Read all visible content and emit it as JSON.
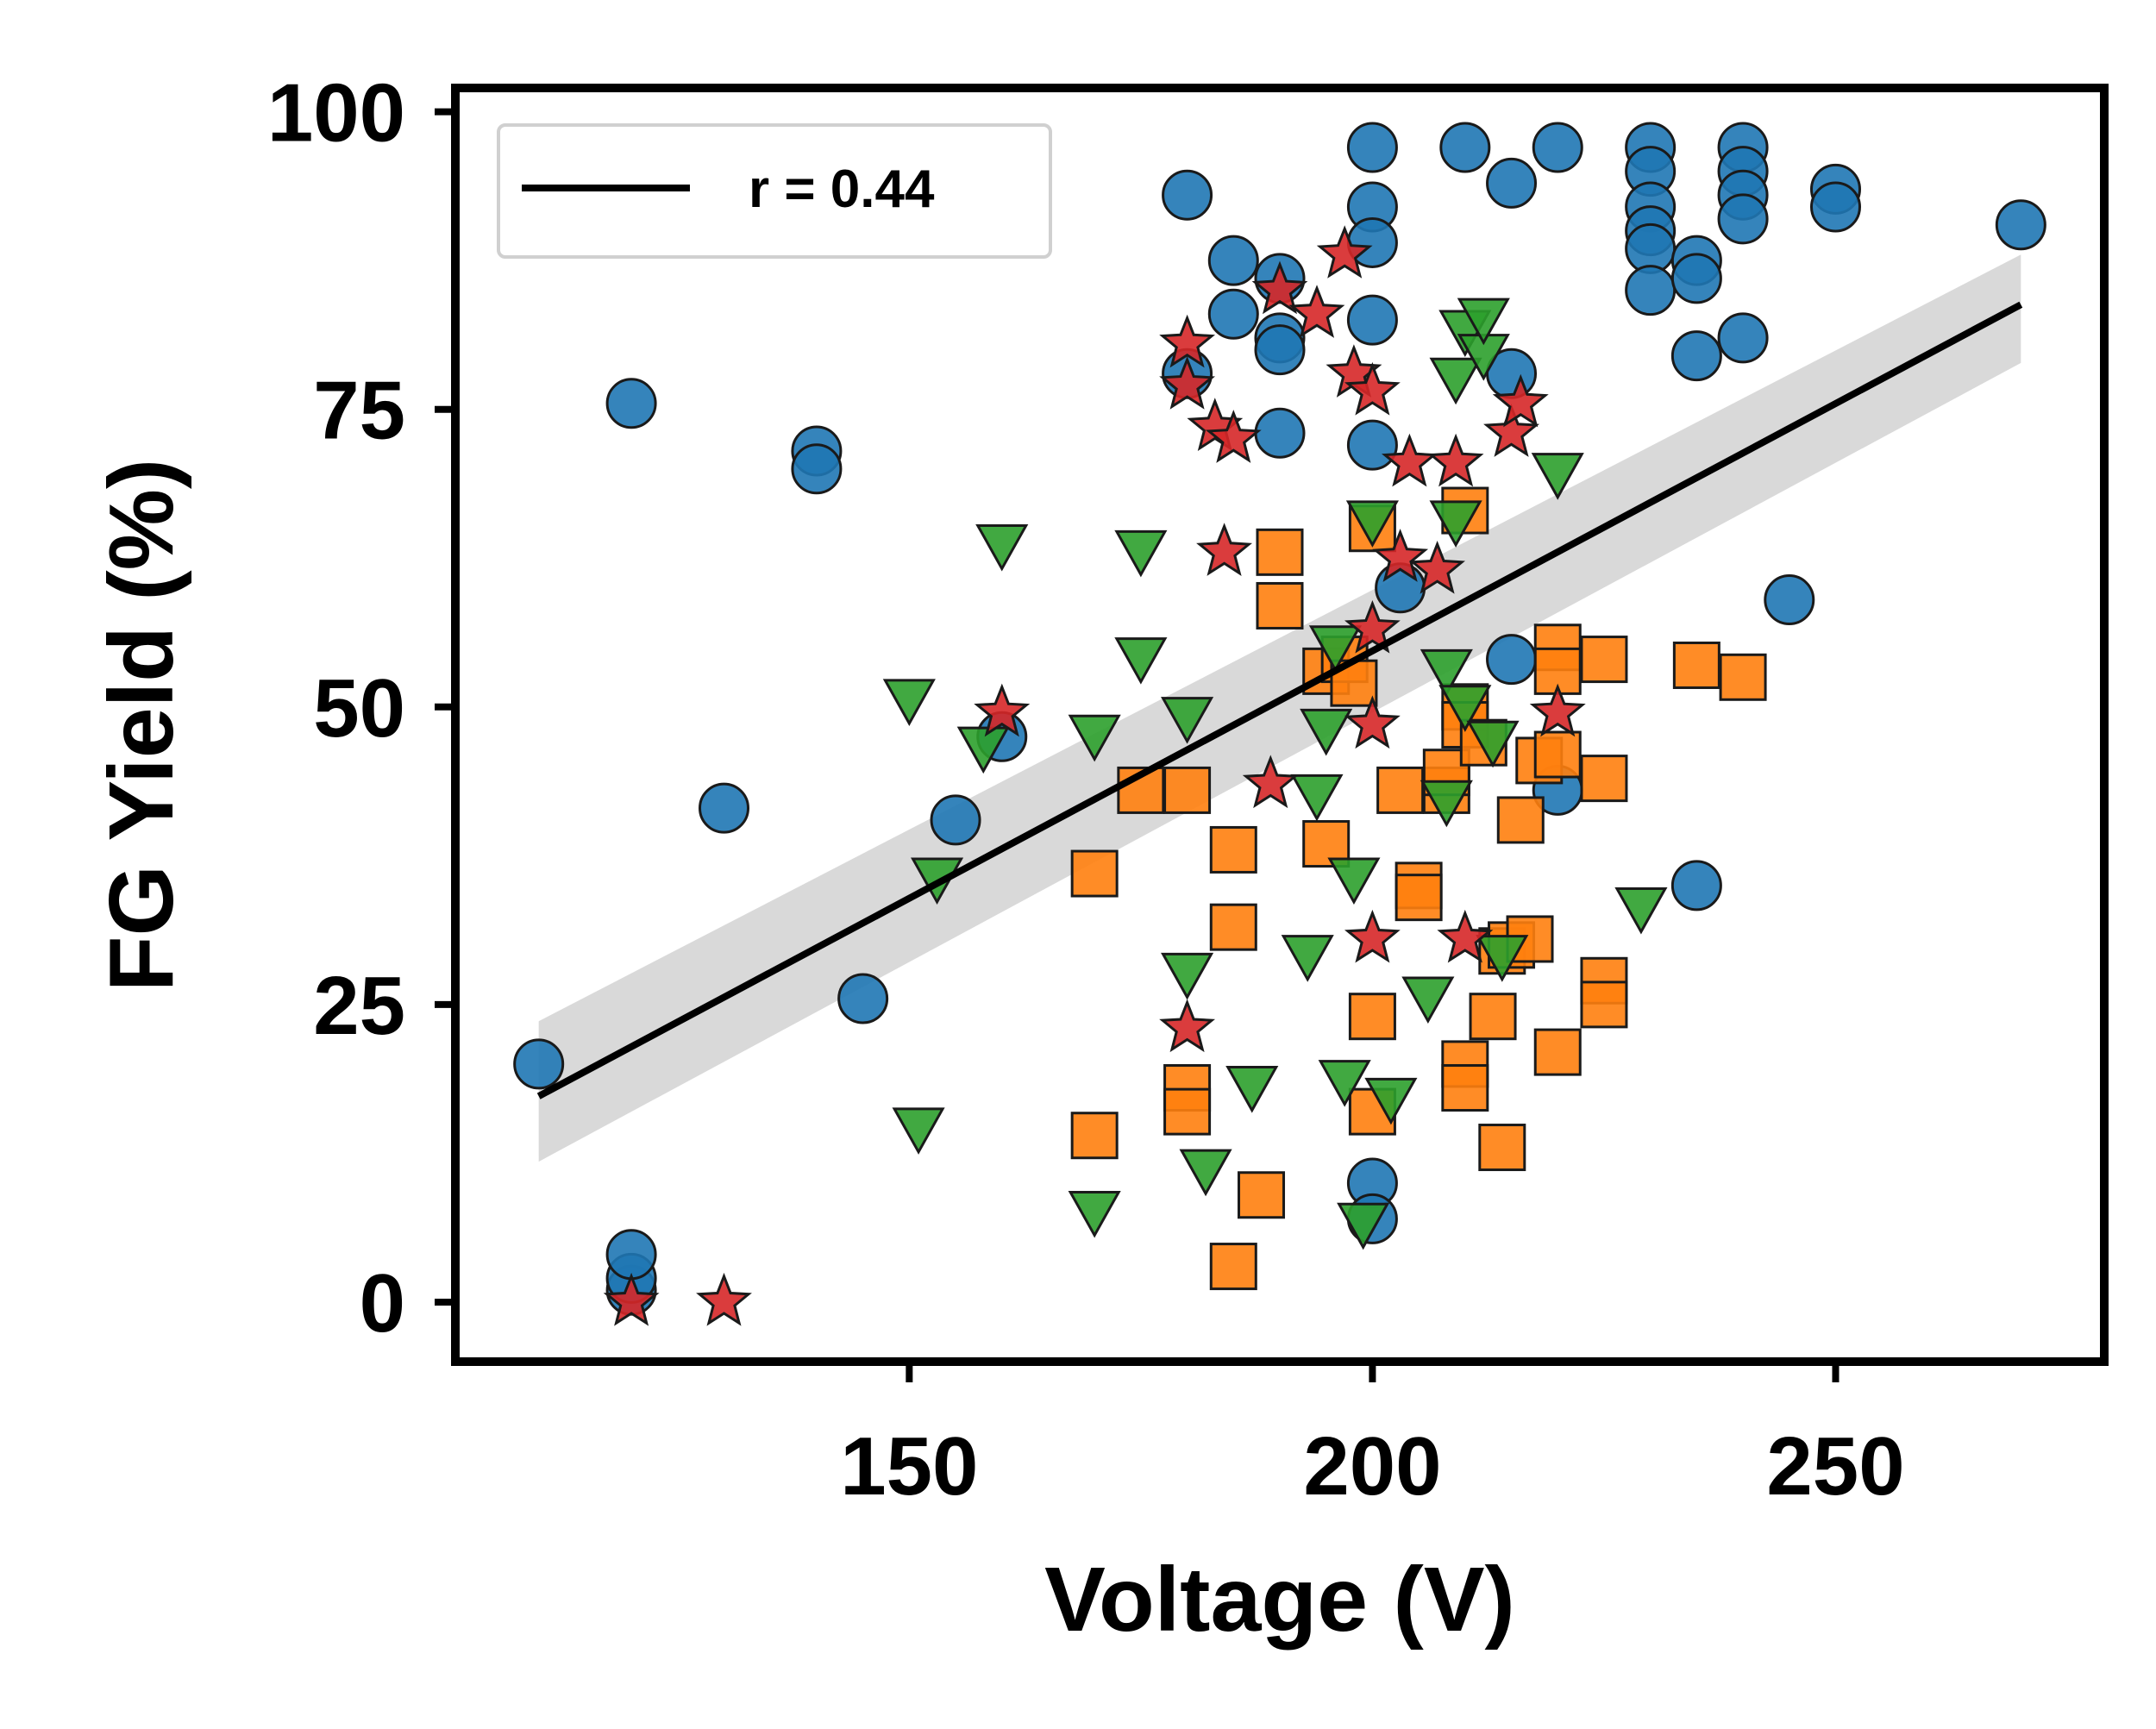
{
  "chart_data": {
    "type": "scatter",
    "xlabel": "Voltage (V)",
    "ylabel": "FG Yield (%)",
    "xlim": [
      101,
      279
    ],
    "ylim": [
      -5,
      102
    ],
    "xticks": [
      150,
      200,
      250
    ],
    "yticks": [
      0,
      25,
      50,
      75,
      100
    ],
    "grid": false,
    "legend": {
      "placement": "top-left",
      "entries": [
        {
          "label": "r = 0.44",
          "color": "#000000"
        }
      ]
    },
    "regression": {
      "x": [
        110,
        270
      ],
      "y": [
        17.3,
        83.8
      ],
      "ci_low": [
        11.8,
        78.9
      ],
      "ci_high": [
        23.6,
        88.0
      ]
    },
    "series": [
      {
        "marker": "circle",
        "color": "#1f77b4",
        "points": [
          [
            110,
            20
          ],
          [
            120,
            75.5
          ],
          [
            120,
            1
          ],
          [
            120,
            2
          ],
          [
            120,
            4
          ],
          [
            130,
            41.5
          ],
          [
            140,
            71.5
          ],
          [
            140,
            70
          ],
          [
            145,
            25.5
          ],
          [
            155,
            40.5
          ],
          [
            160,
            47.5
          ],
          [
            180,
            93
          ],
          [
            180,
            78
          ],
          [
            185,
            87.5
          ],
          [
            185,
            83
          ],
          [
            190,
            86
          ],
          [
            190,
            81
          ],
          [
            190,
            80
          ],
          [
            190,
            73
          ],
          [
            200,
            97
          ],
          [
            200,
            92
          ],
          [
            200,
            89
          ],
          [
            200,
            82.5
          ],
          [
            200,
            72
          ],
          [
            200,
            10
          ],
          [
            200,
            7
          ],
          [
            203,
            60
          ],
          [
            210,
            97
          ],
          [
            215,
            94
          ],
          [
            215,
            78
          ],
          [
            215,
            54
          ],
          [
            220,
            97
          ],
          [
            220,
            43
          ],
          [
            230,
            97
          ],
          [
            230,
            95
          ],
          [
            230,
            92
          ],
          [
            230,
            90
          ],
          [
            230,
            88.5
          ],
          [
            230,
            85
          ],
          [
            235,
            87.5
          ],
          [
            235,
            86
          ],
          [
            235,
            79.5
          ],
          [
            235,
            35
          ],
          [
            240,
            97
          ],
          [
            240,
            95
          ],
          [
            240,
            93
          ],
          [
            240,
            91
          ],
          [
            240,
            81
          ],
          [
            245,
            59
          ],
          [
            250,
            93.5
          ],
          [
            250,
            92
          ],
          [
            270,
            90.5
          ]
        ]
      },
      {
        "marker": "square",
        "color": "#ff7f0e",
        "points": [
          [
            170,
            36
          ],
          [
            170,
            14
          ],
          [
            175,
            43
          ],
          [
            180,
            43
          ],
          [
            180,
            18
          ],
          [
            180,
            16
          ],
          [
            185,
            38
          ],
          [
            185,
            31.5
          ],
          [
            185,
            3
          ],
          [
            188,
            9
          ],
          [
            190,
            63
          ],
          [
            190,
            58.5
          ],
          [
            195,
            38.5
          ],
          [
            195,
            53
          ],
          [
            197,
            54
          ],
          [
            198,
            52
          ],
          [
            200,
            65
          ],
          [
            200,
            24
          ],
          [
            200,
            16
          ],
          [
            203,
            43
          ],
          [
            205,
            35
          ],
          [
            205,
            34
          ],
          [
            208,
            43
          ],
          [
            208,
            44.5
          ],
          [
            210,
            66.5
          ],
          [
            210,
            50
          ],
          [
            210,
            48.5
          ],
          [
            210,
            20
          ],
          [
            210,
            18
          ],
          [
            212,
            47
          ],
          [
            213,
            24
          ],
          [
            214,
            29.5
          ],
          [
            214,
            13
          ],
          [
            215,
            30
          ],
          [
            216,
            40.5
          ],
          [
            217,
            30.5
          ],
          [
            218,
            45.5
          ],
          [
            220,
            55
          ],
          [
            220,
            53
          ],
          [
            220,
            46
          ],
          [
            220,
            21
          ],
          [
            225,
            54
          ],
          [
            225,
            44
          ],
          [
            225,
            27
          ],
          [
            225,
            25
          ],
          [
            235,
            53.5
          ],
          [
            240,
            52.5
          ]
        ]
      },
      {
        "marker": "triangle-down",
        "color": "#2ca02c",
        "points": [
          [
            150,
            50.5
          ],
          [
            151,
            14.5
          ],
          [
            153,
            35.5
          ],
          [
            158,
            46.5
          ],
          [
            160,
            63.5
          ],
          [
            170,
            47.5
          ],
          [
            170,
            7.5
          ],
          [
            175,
            63
          ],
          [
            175,
            54
          ],
          [
            180,
            49
          ],
          [
            180,
            27.5
          ],
          [
            182,
            11
          ],
          [
            187,
            18
          ],
          [
            193,
            29
          ],
          [
            194,
            42.5
          ],
          [
            195,
            48
          ],
          [
            196,
            55
          ],
          [
            197,
            18.5
          ],
          [
            198,
            35.5
          ],
          [
            199,
            6.5
          ],
          [
            200,
            65.5
          ],
          [
            202,
            17
          ],
          [
            206,
            25.5
          ],
          [
            208,
            53
          ],
          [
            208,
            42
          ],
          [
            209,
            77.5
          ],
          [
            209,
            65.5
          ],
          [
            210,
            81.5
          ],
          [
            210,
            50
          ],
          [
            212,
            79.5
          ],
          [
            212,
            82.5
          ],
          [
            213,
            47
          ],
          [
            214,
            29
          ],
          [
            220,
            69.5
          ],
          [
            229,
            33
          ]
        ]
      },
      {
        "marker": "star",
        "color": "#d62728",
        "points": [
          [
            120,
            0
          ],
          [
            130,
            0
          ],
          [
            160,
            49.5
          ],
          [
            180,
            80.5
          ],
          [
            180,
            77
          ],
          [
            183,
            73.5
          ],
          [
            184,
            63
          ],
          [
            185,
            72.5
          ],
          [
            189,
            43.5
          ],
          [
            190,
            85
          ],
          [
            194,
            83
          ],
          [
            197,
            88
          ],
          [
            198,
            78
          ],
          [
            200,
            76.5
          ],
          [
            200,
            48.5
          ],
          [
            200,
            56.5
          ],
          [
            200,
            30.5
          ],
          [
            203,
            62.5
          ],
          [
            204,
            70.5
          ],
          [
            207,
            61.5
          ],
          [
            209,
            70.5
          ],
          [
            210,
            30.5
          ],
          [
            215,
            73
          ],
          [
            216,
            75.5
          ],
          [
            220,
            49.5
          ],
          [
            180,
            23
          ]
        ]
      }
    ]
  }
}
